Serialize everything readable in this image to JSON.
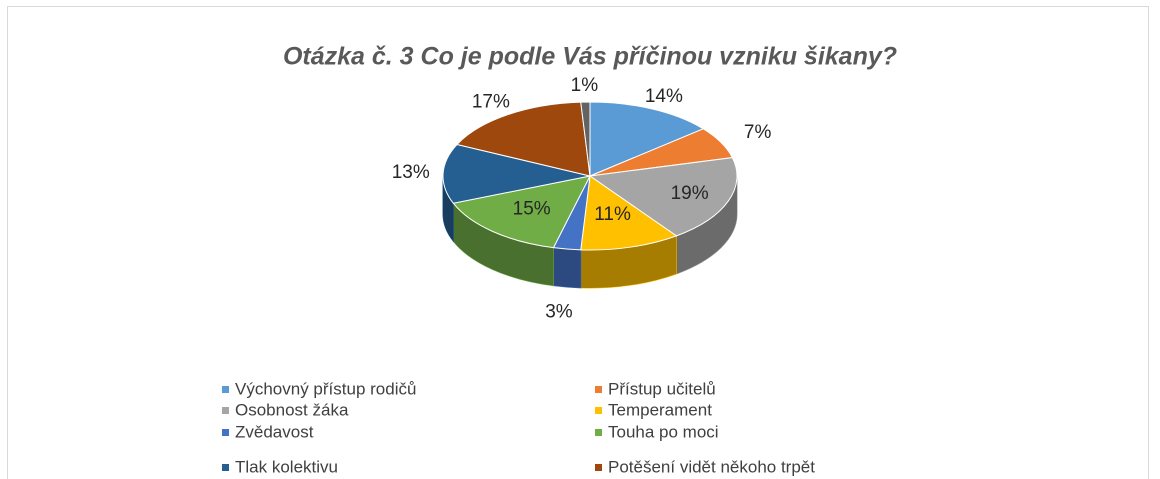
{
  "chart_data": {
    "type": "pie3d",
    "title": "Otázka č. 3 Co je podle Vás příčinou vzniku šikany?",
    "categories": [
      "Výchovný přístup rodičů",
      "Přístup učitelů",
      "Osobnost žáka",
      "Temperament",
      "Zvědavost",
      "Touha po moci",
      "Tlak kolektivu",
      "Potěšení vidět někoho trpět",
      null
    ],
    "values": [
      14,
      7,
      19,
      11,
      3,
      15,
      13,
      17,
      1
    ],
    "value_labels": [
      "14%",
      "7%",
      "19%",
      "11%",
      "3%",
      "15%",
      "13%",
      "17%",
      "1%"
    ],
    "colors": [
      "#5b9bd5",
      "#ed7d31",
      "#a5a5a5",
      "#ffc000",
      "#4472c4",
      "#70ad47",
      "#255e91",
      "#9e480e",
      "#636363"
    ],
    "legend": "bottom"
  }
}
